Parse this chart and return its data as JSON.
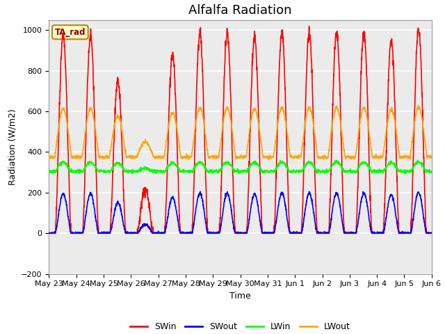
{
  "title": "Alfalfa Radiation",
  "xlabel": "Time",
  "ylabel": "Radiation (W/m2)",
  "ylim": [
    -200,
    1050
  ],
  "yticks": [
    -200,
    0,
    200,
    400,
    600,
    800,
    1000
  ],
  "x_labels": [
    "May 23",
    "May 24",
    "May 25",
    "May 26",
    "May 27",
    "May 28",
    "May 29",
    "May 30",
    "May 31",
    "Jun 1",
    "Jun 2",
    "Jun 3",
    "Jun 4",
    "Jun 5",
    "Jun 6"
  ],
  "annotation_text": "TA_rad",
  "annotation_color": "#8B0000",
  "annotation_bg": "#FFFFCC",
  "annotation_border": "#B8860B",
  "legend_entries": [
    "SWin",
    "SWout",
    "LWin",
    "LWout"
  ],
  "line_colors": [
    "red",
    "blue",
    "lime",
    "orange"
  ],
  "plot_bg_color": "#EBEBEB",
  "grid_color": "white",
  "title_fontsize": 13,
  "axis_label_fontsize": 9,
  "tick_fontsize": 8
}
